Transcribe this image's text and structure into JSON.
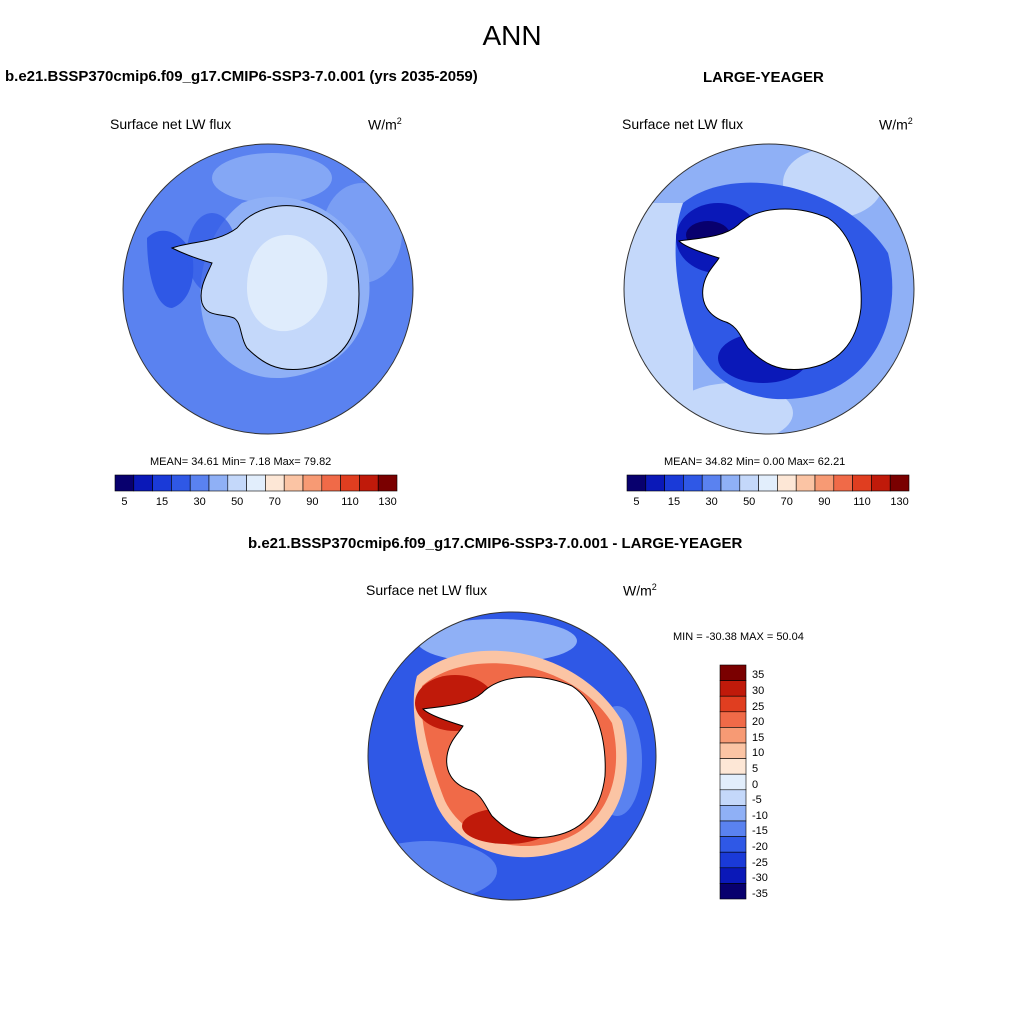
{
  "figure": {
    "title": "ANN"
  },
  "panels": {
    "model": {
      "title": "b.e21.BSSP370cmip6.f09_g17.CMIP6-SSP3-7.0.001 (yrs 2035-2059)",
      "variable": "Surface net LW flux",
      "units_base": "W/m",
      "units_exp": "2",
      "stats": "MEAN=  34.61  Min=   7.18  Max=  79.82"
    },
    "obs": {
      "title": "LARGE-YEAGER",
      "variable": "Surface net LW flux",
      "units_base": "W/m",
      "units_exp": "2",
      "stats": "MEAN=  34.82  Min=   0.00  Max=  62.21"
    },
    "diff": {
      "title": "b.e21.BSSP370cmip6.f09_g17.CMIP6-SSP3-7.0.001 - LARGE-YEAGER",
      "variable": "Surface net LW flux",
      "units_base": "W/m",
      "units_exp": "2",
      "stats": "MIN = -30.38 MAX =  50.04"
    }
  },
  "colorbars": {
    "abs": {
      "colors": [
        "#08006e",
        "#0a18b8",
        "#1a3ad8",
        "#2f58e6",
        "#5a82f0",
        "#8fb0f6",
        "#c4d8fa",
        "#e2eefc",
        "#fde7d6",
        "#fbc4a4",
        "#f79a74",
        "#f06a48",
        "#e03e20",
        "#c01a0a",
        "#7a0000"
      ],
      "labels": [
        "5",
        "15",
        "30",
        "50",
        "70",
        "90",
        "110",
        "130"
      ]
    },
    "diff": {
      "colors": [
        "#08006e",
        "#0a18b8",
        "#1a3ad8",
        "#2f58e6",
        "#5a82f0",
        "#8fb0f6",
        "#c4d8fa",
        "#e2eefc",
        "#fde7d6",
        "#fbc4a4",
        "#f79a74",
        "#f06a48",
        "#e03e20",
        "#c01a0a",
        "#7a0000"
      ],
      "labels": [
        "35",
        "30",
        "25",
        "20",
        "15",
        "10",
        "5",
        "0",
        "-5",
        "-10",
        "-15",
        "-20",
        "-25",
        "-30",
        "-35"
      ]
    }
  },
  "colors": {
    "land": "#ffffff",
    "coast": "#000000"
  }
}
